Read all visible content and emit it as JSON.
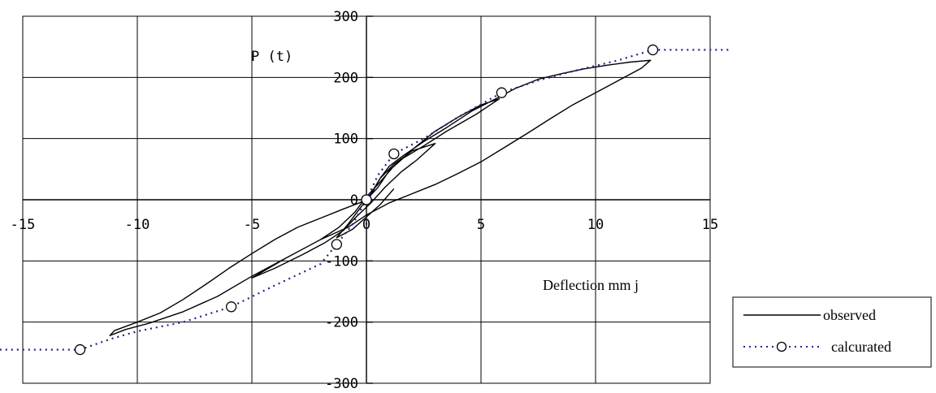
{
  "chart_data": {
    "type": "line",
    "xlabel": "Deflection mm j",
    "ylabel": "P (t)",
    "xlim": [
      -15,
      15
    ],
    "ylim": [
      -300,
      300
    ],
    "xticks": [
      -15,
      -10,
      -5,
      0,
      5,
      10,
      15
    ],
    "yticks": [
      -300,
      -200,
      -100,
      0,
      100,
      200,
      300
    ],
    "grid": true,
    "legend_position": "right",
    "series": [
      {
        "name": "observed",
        "color": "#000000",
        "style": "solid",
        "markers": false,
        "values": [
          [
            0,
            0
          ],
          [
            0.3,
            15
          ],
          [
            0.6,
            35
          ],
          [
            1.0,
            55
          ],
          [
            1.6,
            72
          ],
          [
            2.5,
            95
          ],
          [
            3.5,
            118
          ],
          [
            4.6,
            145
          ],
          [
            5.8,
            168
          ],
          [
            6.5,
            182
          ],
          [
            7.5,
            197
          ],
          [
            8.5,
            206
          ],
          [
            9.5,
            214
          ],
          [
            10.5,
            220
          ],
          [
            11.5,
            225
          ],
          [
            12.4,
            228
          ],
          [
            12.0,
            215
          ],
          [
            11.0,
            195
          ],
          [
            10.0,
            175
          ],
          [
            9.0,
            155
          ],
          [
            8.0,
            132
          ],
          [
            7.0,
            108
          ],
          [
            6.0,
            85
          ],
          [
            5.0,
            62
          ],
          [
            4.0,
            43
          ],
          [
            3.0,
            25
          ],
          [
            2.0,
            10
          ],
          [
            1.0,
            -5
          ],
          [
            0.0,
            -25
          ],
          [
            -0.8,
            -45
          ],
          [
            -2.0,
            -65
          ],
          [
            -3.5,
            -95
          ],
          [
            -5.0,
            -125
          ],
          [
            -6.5,
            -158
          ],
          [
            -8.0,
            -183
          ],
          [
            -9.5,
            -202
          ],
          [
            -10.5,
            -212
          ],
          [
            -11.2,
            -222
          ],
          [
            -11.0,
            -214
          ],
          [
            -10.0,
            -200
          ],
          [
            -9.0,
            -185
          ],
          [
            -8.0,
            -163
          ],
          [
            -7.0,
            -138
          ],
          [
            -6.0,
            -112
          ],
          [
            -5.0,
            -88
          ],
          [
            -4.0,
            -65
          ],
          [
            -3.0,
            -45
          ],
          [
            -2.0,
            -30
          ],
          [
            -1.0,
            -15
          ],
          [
            -0.3,
            -5
          ],
          [
            0,
            0
          ],
          [
            0.5,
            20
          ],
          [
            1.0,
            48
          ],
          [
            1.6,
            68
          ],
          [
            2.5,
            88
          ],
          [
            3.5,
            112
          ],
          [
            4.8,
            140
          ],
          [
            5.8,
            165
          ],
          [
            5.0,
            155
          ],
          [
            4.0,
            135
          ],
          [
            3.0,
            112
          ],
          [
            2.0,
            82
          ],
          [
            1.2,
            55
          ],
          [
            0.5,
            25
          ],
          [
            0,
            5
          ],
          [
            -0.5,
            -20
          ],
          [
            -1.2,
            -45
          ],
          [
            -2.0,
            -65
          ],
          [
            -3.5,
            -95
          ],
          [
            -5.0,
            -128
          ],
          [
            -4.0,
            -112
          ],
          [
            -2.8,
            -90
          ],
          [
            -1.8,
            -70
          ],
          [
            -1.0,
            -50
          ],
          [
            -0.5,
            -30
          ],
          [
            0.2,
            -5
          ],
          [
            0.8,
            20
          ],
          [
            1.5,
            45
          ],
          [
            2.2,
            65
          ],
          [
            3.0,
            92
          ],
          [
            2.0,
            80
          ],
          [
            1.2,
            58
          ],
          [
            0.6,
            35
          ],
          [
            0.2,
            10
          ],
          [
            -0.3,
            -15
          ],
          [
            -0.8,
            -40
          ],
          [
            -1.3,
            -62
          ],
          [
            -0.6,
            -48
          ],
          [
            0.0,
            -28
          ],
          [
            0.6,
            -8
          ],
          [
            1.2,
            18
          ]
        ]
      },
      {
        "name": "calcurated",
        "color": "#1f1f8f",
        "style": "dotted",
        "markers": true,
        "values": [
          [
            -16,
            -245
          ],
          [
            -12.5,
            -245
          ],
          [
            -11.2,
            -228
          ],
          [
            -10.0,
            -215
          ],
          [
            -8.0,
            -200
          ],
          [
            -5.9,
            -175
          ],
          [
            -4.0,
            -140
          ],
          [
            -2.0,
            -105
          ],
          [
            -1.3,
            -73
          ],
          [
            -0.6,
            -40
          ],
          [
            0,
            0
          ],
          [
            0.5,
            40
          ],
          [
            1.2,
            75
          ],
          [
            2.5,
            100
          ],
          [
            4.0,
            135
          ],
          [
            5.9,
            175
          ],
          [
            7.5,
            195
          ],
          [
            9.0,
            210
          ],
          [
            11.0,
            228
          ],
          [
            12.5,
            245
          ],
          [
            16,
            245
          ]
        ],
        "marker_points": [
          [
            -12.5,
            -245
          ],
          [
            -5.9,
            -175
          ],
          [
            -1.3,
            -73
          ],
          [
            0,
            0
          ],
          [
            1.2,
            75
          ],
          [
            5.9,
            175
          ],
          [
            12.5,
            245
          ]
        ]
      }
    ]
  }
}
